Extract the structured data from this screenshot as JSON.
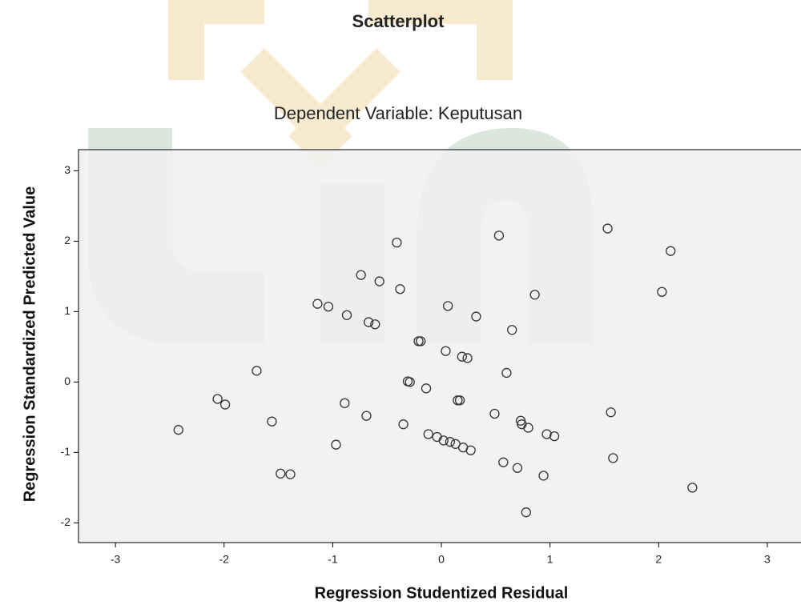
{
  "chart_data": {
    "type": "scatter",
    "title": "Scatterplot",
    "subtitle": "Dependent Variable: Keputusan",
    "x_label": "Regression Studentized Residual",
    "y_label": "Regression Standardized Predicted Value",
    "xlim": [
      -3.34,
      3.31
    ],
    "xticks": [
      -3,
      -2,
      -1,
      0,
      1,
      2,
      3
    ],
    "ylim": [
      -2.28,
      3.3
    ],
    "yticks": [
      -2,
      -1,
      0,
      1,
      2,
      3
    ],
    "color": "#333333",
    "x": [
      -2.42,
      -2.06,
      -1.99,
      -1.7,
      -1.56,
      -1.48,
      -1.39,
      -1.14,
      -1.04,
      -0.97,
      -0.87,
      -0.89,
      -0.74,
      -0.69,
      -0.67,
      -0.61,
      -0.57,
      -0.41,
      -0.38,
      -0.35,
      -0.31,
      -0.29,
      -0.21,
      -0.19,
      -0.14,
      -0.12,
      -0.04,
      0.02,
      0.04,
      0.06,
      0.08,
      0.13,
      0.15,
      0.17,
      0.19,
      0.2,
      0.24,
      0.27,
      0.32,
      0.49,
      0.53,
      0.57,
      0.6,
      0.65,
      0.7,
      0.73,
      0.74,
      0.8,
      0.86,
      0.94,
      0.97,
      1.04,
      0.78,
      1.53,
      1.56,
      1.58,
      2.03,
      2.11,
      2.31
    ],
    "values": [
      -0.68,
      -0.24,
      -0.32,
      0.16,
      -0.56,
      -1.3,
      -1.31,
      1.11,
      1.07,
      -0.89,
      0.95,
      -0.3,
      1.52,
      -0.48,
      0.85,
      0.82,
      1.43,
      1.98,
      1.32,
      -0.6,
      0.01,
      0.0,
      0.58,
      0.58,
      -0.09,
      -0.74,
      -0.78,
      -0.83,
      0.44,
      1.08,
      -0.85,
      -0.88,
      -0.26,
      -0.26,
      0.36,
      -0.93,
      0.34,
      -0.97,
      0.93,
      -0.45,
      2.08,
      -1.14,
      0.13,
      0.74,
      -1.22,
      -0.55,
      -0.6,
      -0.65,
      1.24,
      -1.33,
      -0.74,
      -0.77,
      -1.85,
      2.18,
      -0.43,
      -1.08,
      1.28,
      1.86,
      -1.5
    ]
  }
}
